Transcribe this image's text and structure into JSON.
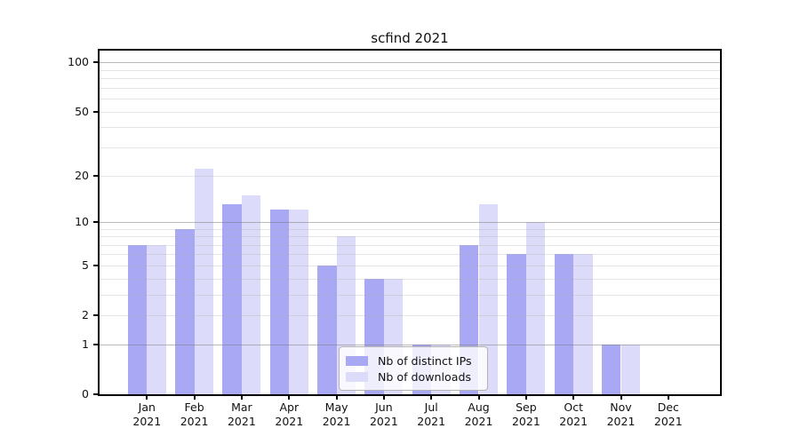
{
  "chart_data": {
    "type": "bar",
    "title": "scfind 2021",
    "x": {
      "categories": [
        "Jan",
        "Feb",
        "Mar",
        "Apr",
        "May",
        "Jun",
        "Jul",
        "Aug",
        "Sep",
        "Oct",
        "Nov",
        "Dec"
      ],
      "sublabel": "2021"
    },
    "yaxis": {
      "scale": "log10(1+x)",
      "tick_labels": [
        0,
        1,
        2,
        5,
        10,
        20,
        50,
        100
      ],
      "major_gridlines": [
        1,
        10,
        100
      ],
      "minor_gridlines": [
        2,
        3,
        4,
        5,
        6,
        7,
        8,
        9,
        20,
        30,
        40,
        50,
        60,
        70,
        80,
        90
      ],
      "ylim": [
        0,
        100
      ],
      "grid": "on"
    },
    "series": [
      {
        "name": "Nb of distinct IPs",
        "color": "#a8a8f4",
        "values": [
          7,
          9,
          13,
          12,
          5,
          4,
          1,
          7,
          6,
          6,
          1,
          0
        ]
      },
      {
        "name": "Nb of downloads",
        "color": "#dcdcfa",
        "values": [
          7,
          22,
          15,
          12,
          8,
          4,
          1,
          13,
          10,
          6,
          1,
          0
        ]
      }
    ],
    "legend": {
      "position": "inside-bottom-center"
    }
  },
  "colors": {
    "background": "#ffffff",
    "axis_frame": "#000000",
    "major_gridline": "#b8b8b8",
    "minor_gridline": "#eaeaea",
    "legend_border": "#b3b3b3"
  }
}
